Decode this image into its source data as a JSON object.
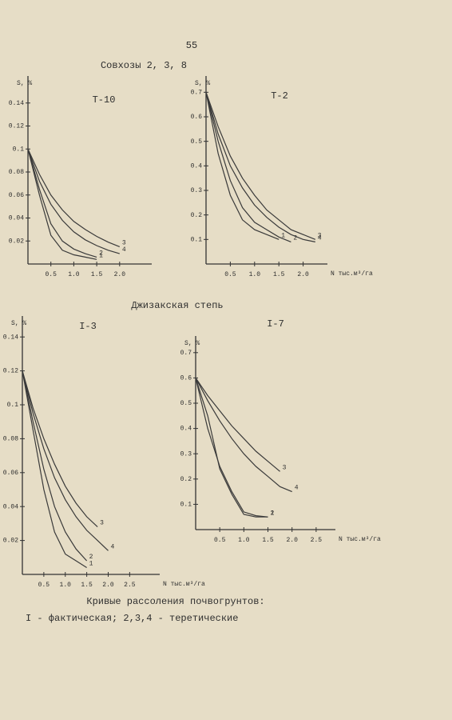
{
  "page_number": "55",
  "heading": "Совхозы 2, 3, 8",
  "section": "Джизакская степь",
  "caption": [
    "Кривые рассоления почвогрунтов:",
    "I - фактическая; 2,3,4 - теретические"
  ],
  "chart_data": [
    {
      "type": "line",
      "title": "Т-10",
      "y_label": "S, %",
      "x": [
        0,
        0.25,
        0.5,
        0.75,
        1,
        1.25,
        1.5,
        1.75,
        2
      ],
      "series": [
        {
          "name": "1",
          "color": "#3a3a3a",
          "values": [
            0.1,
            0.06,
            0.025,
            0.012,
            0.008,
            0.006,
            0.004,
            null,
            null
          ]
        },
        {
          "name": "2",
          "color": "#3a3a3a",
          "values": [
            0.1,
            0.065,
            0.035,
            0.02,
            0.013,
            0.009,
            0.006,
            null,
            null
          ]
        },
        {
          "name": "3",
          "color": "#3a3a3a",
          "values": [
            0.1,
            0.078,
            0.06,
            0.047,
            0.037,
            0.03,
            0.024,
            0.019,
            0.015
          ]
        },
        {
          "name": "4",
          "color": "#3a3a3a",
          "values": [
            0.1,
            0.072,
            0.052,
            0.038,
            0.028,
            0.021,
            0.016,
            0.012,
            0.009
          ]
        }
      ],
      "xlim": [
        0,
        2.7
      ],
      "ylim": [
        0,
        0.16
      ],
      "xticks": [
        0.5,
        {
          "value": 1,
          "label": "1.0"
        },
        1.5,
        {
          "value": 2,
          "label": "2.0"
        }
      ],
      "yticks": [
        0.02,
        0.04,
        0.06,
        0.08,
        0.1,
        0.12,
        0.14
      ]
    },
    {
      "type": "line",
      "title": "Т-2",
      "y_label": "S, %",
      "x_label": "N тыс.м³/га",
      "x": [
        0,
        0.25,
        0.5,
        0.75,
        1,
        1.25,
        1.5,
        1.75,
        2,
        2.25
      ],
      "series": [
        {
          "name": "1",
          "color": "#3a3a3a",
          "values": [
            0.7,
            0.45,
            0.28,
            0.18,
            0.14,
            0.12,
            0.1,
            null,
            null,
            null
          ]
        },
        {
          "name": "2",
          "color": "#3a3a3a",
          "values": [
            0.7,
            0.5,
            0.34,
            0.23,
            0.17,
            0.14,
            0.11,
            0.09,
            null,
            null
          ]
        },
        {
          "name": "3",
          "color": "#3a3a3a",
          "values": [
            0.7,
            0.56,
            0.44,
            0.35,
            0.28,
            0.22,
            0.18,
            0.14,
            0.12,
            0.1
          ]
        },
        {
          "name": "4",
          "color": "#3a3a3a",
          "values": [
            0.7,
            0.53,
            0.4,
            0.31,
            0.24,
            0.19,
            0.15,
            0.12,
            0.1,
            0.09
          ]
        }
      ],
      "xlim": [
        0,
        2.5
      ],
      "ylim": [
        0,
        0.75
      ],
      "xticks": [
        0.5,
        {
          "value": 1,
          "label": "1.0"
        },
        1.5,
        {
          "value": 2,
          "label": "2.0"
        }
      ],
      "yticks": [
        0.1,
        0.2,
        0.3,
        0.4,
        0.5,
        0.6,
        0.7
      ]
    },
    {
      "type": "line",
      "title": "I-3",
      "y_label": "S, %",
      "x_label": "N тыс.м³/га",
      "x": [
        0,
        0.25,
        0.5,
        0.75,
        1,
        1.25,
        1.5,
        1.75,
        2
      ],
      "series": [
        {
          "name": "1",
          "color": "#3a3a3a",
          "values": [
            0.12,
            0.085,
            0.05,
            0.025,
            0.012,
            0.008,
            0.004,
            null,
            null
          ]
        },
        {
          "name": "2",
          "color": "#3a3a3a",
          "values": [
            0.12,
            0.09,
            0.062,
            0.04,
            0.025,
            0.015,
            0.008,
            null,
            null
          ]
        },
        {
          "name": "3",
          "color": "#3a3a3a",
          "values": [
            0.12,
            0.098,
            0.08,
            0.065,
            0.052,
            0.042,
            0.034,
            0.028,
            null
          ]
        },
        {
          "name": "4",
          "color": "#3a3a3a",
          "values": [
            0.12,
            0.095,
            0.074,
            0.057,
            0.044,
            0.034,
            0.026,
            0.02,
            0.014
          ]
        }
      ],
      "xlim": [
        0,
        3.2
      ],
      "ylim": [
        0,
        0.15
      ],
      "xticks": [
        0.5,
        {
          "value": 1,
          "label": "1.0"
        },
        1.5,
        {
          "value": 2,
          "label": "2.0"
        },
        2.5
      ],
      "yticks": [
        0.02,
        0.04,
        0.06,
        0.08,
        0.1,
        0.12,
        0.14
      ]
    },
    {
      "type": "line",
      "title": "I-7",
      "y_label": "S, %",
      "x_label": "N тыс.м³/га",
      "x": [
        0,
        0.25,
        0.5,
        0.75,
        1,
        1.25,
        1.5,
        1.75,
        2
      ],
      "series": [
        {
          "name": "1",
          "color": "#3a3a3a",
          "values": [
            0.6,
            0.45,
            0.24,
            0.14,
            0.06,
            0.05,
            0.05,
            null,
            null
          ]
        },
        {
          "name": "2",
          "color": "#3a3a3a",
          "values": [
            0.6,
            0.4,
            0.25,
            0.15,
            0.07,
            0.055,
            0.05,
            null,
            null
          ]
        },
        {
          "name": "3",
          "color": "#3a3a3a",
          "values": [
            0.6,
            0.53,
            0.47,
            0.41,
            0.36,
            0.31,
            0.27,
            0.23,
            null
          ]
        },
        {
          "name": "4",
          "color": "#3a3a3a",
          "values": [
            0.6,
            0.51,
            0.43,
            0.36,
            0.3,
            0.25,
            0.21,
            0.17,
            0.15
          ]
        }
      ],
      "xlim": [
        0,
        2.9
      ],
      "ylim": [
        0,
        0.75
      ],
      "xticks": [
        0.5,
        {
          "value": 1,
          "label": "1.0"
        },
        1.5,
        {
          "value": 2,
          "label": "2.0"
        },
        2.5
      ],
      "yticks": [
        0.1,
        0.2,
        0.3,
        0.4,
        0.5,
        0.6,
        0.7
      ]
    }
  ]
}
